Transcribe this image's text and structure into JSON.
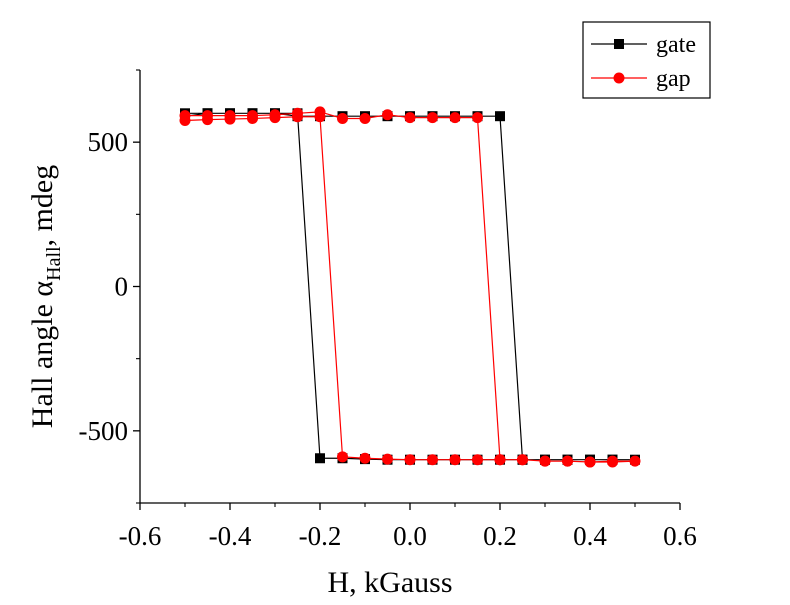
{
  "chart_data": {
    "type": "line",
    "xlabel": "H, kGauss",
    "ylabel": {
      "prefix": "Hall angle α",
      "subscript": "Hall",
      "suffix": ", mdeg"
    },
    "xlim": [
      -0.6,
      0.6
    ],
    "ylim": [
      -750,
      750
    ],
    "x_ticks": [
      -0.6,
      -0.4,
      -0.2,
      0.0,
      0.2,
      0.4,
      0.6
    ],
    "x_tick_labels": [
      "-0.6",
      "-0.4",
      "-0.2",
      "0.0",
      "0.2",
      "0.4",
      "0.6"
    ],
    "y_ticks": [
      -500,
      0,
      500
    ],
    "y_tick_labels": [
      "-500",
      "0",
      "500"
    ],
    "grid": false,
    "legend_position": "top-right",
    "series": [
      {
        "name": "gate",
        "color": "#000000",
        "marker": "square",
        "x": [
          -0.5,
          -0.45,
          -0.4,
          -0.35,
          -0.3,
          -0.25,
          -0.2,
          -0.15,
          -0.1,
          -0.05,
          0.0,
          0.05,
          0.1,
          0.15,
          0.2,
          0.25,
          0.3,
          0.35,
          0.4,
          0.45,
          0.5,
          0.45,
          0.4,
          0.35,
          0.3,
          0.25,
          0.2,
          0.15,
          0.1,
          0.05,
          0.0,
          -0.05,
          -0.1,
          -0.15,
          -0.2,
          -0.25,
          -0.3,
          -0.35,
          -0.4,
          -0.45,
          -0.5
        ],
        "y": [
          590,
          600,
          600,
          600,
          600,
          600,
          -595,
          -595,
          -598,
          -600,
          -600,
          -600,
          -600,
          -600,
          -600,
          -600,
          -600,
          -600,
          -600,
          -600,
          -600,
          -600,
          -600,
          -600,
          -600,
          -600,
          590,
          590,
          590,
          590,
          590,
          590,
          590,
          590,
          590,
          590,
          600,
          600,
          600,
          600,
          600
        ]
      },
      {
        "name": "gap",
        "color": "#ff0000",
        "marker": "circle",
        "x": [
          -0.5,
          -0.45,
          -0.4,
          -0.35,
          -0.3,
          -0.25,
          -0.2,
          -0.15,
          -0.1,
          -0.05,
          0.0,
          0.05,
          0.1,
          0.15,
          0.2,
          0.25,
          0.3,
          0.35,
          0.4,
          0.45,
          0.5,
          0.45,
          0.4,
          0.35,
          0.3,
          0.25,
          0.2,
          0.15,
          0.1,
          0.05,
          0.0,
          -0.05,
          -0.1,
          -0.15,
          -0.2,
          -0.25,
          -0.3,
          -0.35,
          -0.4,
          -0.45,
          -0.5
        ],
        "y": [
          575,
          578,
          580,
          582,
          585,
          588,
          588,
          -590,
          -595,
          -598,
          -600,
          -600,
          -600,
          -600,
          -600,
          -600,
          -605,
          -605,
          -608,
          -608,
          -605,
          -605,
          -608,
          -605,
          -605,
          -600,
          -600,
          585,
          585,
          585,
          585,
          595,
          582,
          582,
          605,
          600,
          595,
          592,
          592,
          592,
          592
        ]
      }
    ]
  }
}
